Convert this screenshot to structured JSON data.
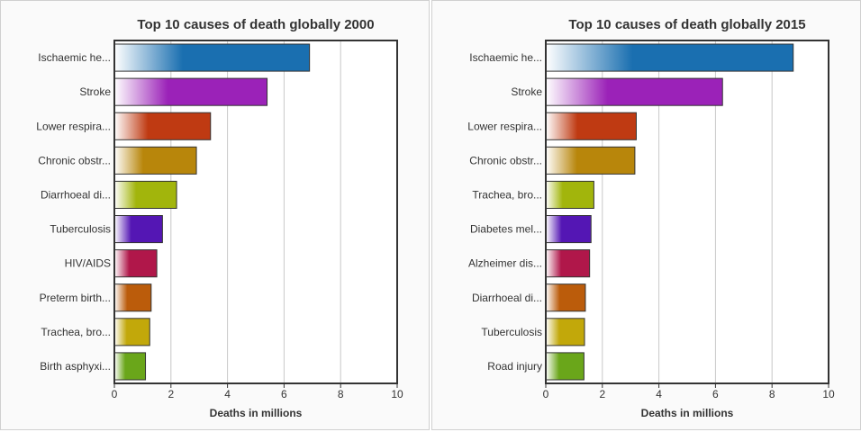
{
  "chart_data": [
    {
      "type": "bar",
      "orientation": "horizontal",
      "title": "Top 10 causes of death globally 2000",
      "xlabel": "Deaths in millions",
      "xlim": [
        0,
        10
      ],
      "xticks": [
        0,
        2,
        4,
        6,
        8,
        10
      ],
      "grid": true,
      "categories": [
        "Ischaemic he...",
        "Stroke",
        "Lower respira...",
        "Chronic obstr...",
        "Diarrhoeal di...",
        "Tuberculosis",
        "HIV/AIDS",
        "Preterm birth...",
        "Trachea, bro...",
        "Birth asphyxi..."
      ],
      "values": [
        6.9,
        5.4,
        3.4,
        2.9,
        2.2,
        1.7,
        1.5,
        1.3,
        1.25,
        1.1
      ],
      "colors": [
        "#1a6fb0",
        "#9b22b8",
        "#bf3a12",
        "#b8860b",
        "#a2b50c",
        "#5416b4",
        "#b0174a",
        "#bb5c0b",
        "#c2a80a",
        "#6aa61a"
      ]
    },
    {
      "type": "bar",
      "orientation": "horizontal",
      "title": "Top 10 causes of death globally 2015",
      "xlabel": "Deaths in millions",
      "xlim": [
        0,
        10
      ],
      "xticks": [
        0,
        2,
        4,
        6,
        8,
        10
      ],
      "grid": true,
      "categories": [
        "Ischaemic he...",
        "Stroke",
        "Lower respira...",
        "Chronic obstr...",
        "Trachea, bro...",
        "Diabetes mel...",
        "Alzheimer dis...",
        "Diarrhoeal di...",
        "Tuberculosis",
        "Road injury"
      ],
      "values": [
        8.75,
        6.25,
        3.2,
        3.15,
        1.7,
        1.6,
        1.55,
        1.4,
        1.37,
        1.35
      ],
      "colors": [
        "#1a6fb0",
        "#9b22b8",
        "#bf3a12",
        "#b8860b",
        "#a2b50c",
        "#5416b4",
        "#b0174a",
        "#bb5c0b",
        "#c2a80a",
        "#6aa61a"
      ]
    }
  ]
}
